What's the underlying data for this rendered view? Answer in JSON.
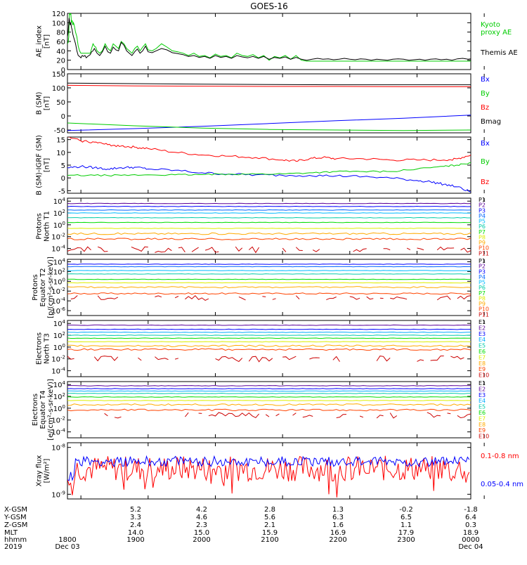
{
  "title": "GOES-16",
  "chart_data": [
    {
      "type": "line",
      "panel": "ae_index",
      "ylabel": [
        "AE_index",
        "[nT]"
      ],
      "yticks": [
        "120",
        "100",
        "80",
        "60",
        "40",
        "20",
        "0"
      ],
      "ylim": [
        0,
        120
      ],
      "legend": [
        {
          "label": "Kyoto",
          "color": "#00cc00"
        },
        {
          "label": "proxy AE",
          "color": "#00cc00"
        },
        {
          "label": "Themis AE",
          "color": "#000000"
        }
      ],
      "series": [
        {
          "name": "Kyoto proxy AE",
          "color": "#00cc00",
          "x": [
            0,
            0.05,
            0.1,
            0.12,
            0.15,
            0.2,
            0.25,
            0.3,
            0.35,
            0.4,
            0.45,
            0.5,
            0.6,
            0.7,
            0.8,
            0.9,
            1.0,
            1.1,
            1.2,
            1.3,
            1.4,
            1.5,
            1.6,
            1.7,
            1.8,
            1.9,
            2.0,
            2.1,
            2.2,
            2.4,
            2.6,
            2.8,
            3.0,
            3.2,
            3.4,
            3.6,
            3.8,
            4.0,
            4.2,
            4.4,
            4.6,
            4.8,
            5.0,
            5.2,
            5.4,
            5.6,
            5.8,
            6.0,
            6.3,
            6.6,
            7.0,
            7.4,
            7.8,
            8.2,
            8.6,
            9.0,
            9.4,
            9.8,
            10.2,
            10.6,
            11.0,
            11.4,
            11.8,
            12.2,
            12.6,
            13.0,
            13.4,
            13.8,
            14.2,
            14.6,
            15.0,
            15.4,
            15.8,
            16.2,
            16.6,
            17.0,
            17.4,
            17.8,
            18.2,
            18.6,
            19.0,
            19.4,
            19.8,
            20.2,
            20.6,
            21.0,
            21.4,
            21.8,
            22.2,
            22.6,
            23.0,
            23.4,
            23.8,
            24.2,
            24.6,
            25.0,
            25.4,
            25.8,
            26.2,
            26.6,
            27.0,
            27.4,
            27.8,
            28.2,
            28.6,
            29.0,
            29.4,
            29.8,
            30.0
          ],
          "y": [
            55,
            58,
            70,
            100,
            122,
            118,
            120,
            100,
            105,
            95,
            100,
            95,
            80,
            70,
            50,
            40,
            35,
            35,
            35,
            35,
            35,
            35,
            35,
            35,
            45,
            55,
            50,
            48,
            40,
            35,
            40,
            55,
            45,
            40,
            55,
            50,
            45,
            60,
            55,
            45,
            40,
            35,
            45,
            50,
            40,
            48,
            55,
            42,
            40,
            45,
            55,
            48,
            40,
            38,
            35,
            30,
            35,
            28,
            30,
            25,
            33,
            28,
            30,
            25,
            35,
            30,
            28,
            32,
            25,
            30,
            20,
            28,
            25,
            30,
            22,
            30,
            20,
            18,
            18,
            18,
            18,
            18,
            18,
            18,
            18,
            18,
            18,
            18,
            18,
            18,
            18,
            18,
            18,
            18,
            18,
            18,
            18,
            18,
            18,
            18,
            18,
            18,
            18,
            18,
            18,
            18,
            18,
            18,
            18
          ]
        },
        {
          "name": "Themis AE",
          "color": "#000000",
          "x": [
            0,
            0.05,
            0.1,
            0.12,
            0.15,
            0.2,
            0.25,
            0.3,
            0.35,
            0.4,
            0.45,
            0.5,
            0.6,
            0.7,
            0.8,
            0.9,
            1.0,
            1.1,
            1.2,
            1.3,
            1.4,
            1.5,
            1.6,
            1.7,
            1.8,
            1.9,
            2.0,
            2.1,
            2.2,
            2.4,
            2.6,
            2.8,
            3.0,
            3.2,
            3.4,
            3.6,
            3.8,
            4.0,
            4.2,
            4.4,
            4.6,
            4.8,
            5.0,
            5.2,
            5.4,
            5.6,
            5.8,
            6.0,
            6.3,
            6.6,
            7.0,
            7.4,
            7.8,
            8.2,
            8.6,
            9.0,
            9.4,
            9.8,
            10.2,
            10.6,
            11.0,
            11.4,
            11.8,
            12.2,
            12.6,
            13.0,
            13.4,
            13.8,
            14.2,
            14.6,
            15.0,
            15.4,
            15.8,
            16.2,
            16.6,
            17.0,
            17.4,
            17.8,
            18.2,
            18.6,
            19.0,
            19.4,
            19.8,
            20.2,
            20.6,
            21.0,
            21.4,
            21.8,
            22.2,
            22.6,
            23.0,
            23.4,
            23.8,
            24.2,
            24.6,
            25.0,
            25.4,
            25.8,
            26.2,
            26.6,
            27.0,
            27.4,
            27.8,
            28.2,
            28.6,
            29.0,
            29.4,
            29.8,
            30.0
          ],
          "y": [
            70,
            80,
            100,
            110,
            105,
            95,
            100,
            90,
            85,
            75,
            70,
            65,
            55,
            40,
            30,
            28,
            25,
            30,
            28,
            30,
            25,
            28,
            30,
            32,
            38,
            40,
            45,
            40,
            35,
            30,
            38,
            50,
            38,
            35,
            48,
            42,
            40,
            58,
            52,
            40,
            35,
            30,
            38,
            44,
            35,
            40,
            50,
            38,
            36,
            40,
            45,
            42,
            36,
            34,
            32,
            28,
            30,
            26,
            28,
            24,
            30,
            26,
            28,
            24,
            30,
            27,
            25,
            28,
            24,
            28,
            22,
            26,
            24,
            27,
            22,
            26,
            22,
            20,
            22,
            24,
            22,
            23,
            21,
            22,
            24,
            22,
            21,
            23,
            22,
            20,
            22,
            21,
            20,
            22,
            23,
            22,
            20,
            21,
            22,
            20,
            22,
            23,
            21,
            22,
            20,
            23,
            24,
            22,
            23
          ]
        }
      ]
    },
    {
      "type": "line",
      "panel": "b_sm",
      "ylabel": [
        "B (SM)",
        "[nT]"
      ],
      "yticks": [
        "150",
        "100",
        "50",
        "0",
        "-50"
      ],
      "ylim": [
        -60,
        150
      ],
      "legend": [
        {
          "label": "Bx",
          "color": "#0000ff"
        },
        {
          "label": "By",
          "color": "#00cc00"
        },
        {
          "label": "Bz",
          "color": "#ff0000"
        },
        {
          "label": "Bmag",
          "color": "#000000"
        }
      ],
      "series": [
        {
          "name": "Bx",
          "color": "#0000ff",
          "x": [
            0,
            5,
            10,
            15,
            20,
            25,
            30
          ],
          "y": [
            -52,
            -45,
            -37,
            -27,
            -17,
            -8,
            3
          ]
        },
        {
          "name": "By",
          "color": "#00cc00",
          "x": [
            0,
            5,
            10,
            15,
            20,
            25,
            30
          ],
          "y": [
            -25,
            -35,
            -43,
            -48,
            -50,
            -52,
            -50
          ]
        },
        {
          "name": "Bz",
          "color": "#ff0000",
          "x": [
            0,
            5,
            10,
            15,
            20,
            25,
            30
          ],
          "y": [
            109,
            107,
            106,
            105,
            105,
            104,
            104
          ]
        },
        {
          "name": "Bmag",
          "color": "#000000",
          "x": [
            0,
            5,
            10,
            15,
            20,
            25,
            30
          ],
          "y": [
            117,
            115,
            113,
            112,
            111,
            111,
            111
          ]
        }
      ]
    },
    {
      "type": "line",
      "panel": "b_minus_igrf",
      "ylabel": [
        "B (SM)-IGRF (SM)",
        "[nT]"
      ],
      "yticks": [
        "15",
        "10",
        "5",
        "0",
        "-5"
      ],
      "ylim": [
        -6,
        16
      ],
      "legend": [
        {
          "label": "Bx",
          "color": "#0000ff"
        },
        {
          "label": "By",
          "color": "#00cc00"
        },
        {
          "label": "Bz",
          "color": "#ff0000"
        }
      ],
      "series": [
        {
          "name": "Bx",
          "color": "#0000ff",
          "x": [
            0,
            1,
            2,
            3,
            4,
            5,
            6,
            8,
            10,
            12,
            14,
            16,
            18,
            20,
            22,
            24,
            26,
            27,
            28,
            29,
            30
          ],
          "y": [
            4,
            4.5,
            4,
            3.5,
            4,
            4.2,
            3.5,
            3,
            2,
            1.5,
            1.2,
            1,
            1,
            0.8,
            0.5,
            0,
            -1,
            -1.5,
            -2.5,
            -3.5,
            -5.5
          ]
        },
        {
          "name": "By",
          "color": "#00cc00",
          "x": [
            0,
            2,
            4,
            6,
            8,
            10,
            12,
            14,
            16,
            18,
            20,
            22,
            24,
            26,
            28,
            29,
            30
          ],
          "y": [
            1,
            1,
            1,
            1.2,
            1.2,
            1.3,
            1.5,
            1.5,
            1.6,
            2,
            2.5,
            2.5,
            2.5,
            3.5,
            4.5,
            5,
            6
          ]
        },
        {
          "name": "Bz",
          "color": "#ff0000",
          "x": [
            0,
            1,
            2,
            3,
            4,
            5,
            6,
            8,
            10,
            12,
            14,
            16,
            17,
            18,
            19,
            20,
            22,
            24,
            26,
            28,
            29,
            30
          ],
          "y": [
            16,
            14.5,
            14,
            13,
            12.5,
            12,
            11.5,
            10,
            9,
            8.5,
            8,
            7,
            6.5,
            7.5,
            8,
            7.5,
            7.5,
            7,
            7,
            7,
            7.5,
            9
          ]
        }
      ]
    },
    {
      "type": "line",
      "panel": "protons_north",
      "ylabel": [
        "Protons",
        "North T1"
      ],
      "yticks": [
        "10^4",
        "10^2",
        "10^0",
        "10^-2",
        "10^-4"
      ],
      "yscale": "log",
      "ylim": [
        -5,
        4.5
      ],
      "legend": [
        {
          "label": "P1",
          "color": "#000000"
        },
        {
          "label": "P2",
          "color": "#5a0099"
        },
        {
          "label": "P3",
          "color": "#0000ff"
        },
        {
          "label": "P4",
          "color": "#0066ff"
        },
        {
          "label": "P5",
          "color": "#00bbff"
        },
        {
          "label": "P6",
          "color": "#00ccaa"
        },
        {
          "label": "P7",
          "color": "#00dd00"
        },
        {
          "label": "P8",
          "color": "#ddee00"
        },
        {
          "label": "P9",
          "color": "#ffaa00"
        },
        {
          "label": "P10",
          "color": "#ff4400"
        },
        {
          "label": "P11",
          "color": "#cc0000"
        }
      ],
      "levels": [
        3.6,
        3.1,
        2.5,
        2.0,
        1.2,
        0.4,
        -0.6,
        -1.5,
        -2.4,
        -4.2
      ]
    },
    {
      "type": "line",
      "panel": "protons_equator",
      "ylabel": [
        "Protons",
        "Equator T2",
        "[p/(cm²-s-sr-keV)]"
      ],
      "yticks": [
        "10^4",
        "10^2",
        "10^0",
        "10^-2",
        "10^-4",
        "10^-6"
      ],
      "yscale": "log",
      "ylim": [
        -7,
        4.5
      ],
      "legend": [
        {
          "label": "P1",
          "color": "#000000"
        },
        {
          "label": "P2",
          "color": "#5a0099"
        },
        {
          "label": "P3",
          "color": "#0000ff"
        },
        {
          "label": "P4",
          "color": "#0066ff"
        },
        {
          "label": "P5",
          "color": "#00bbff"
        },
        {
          "label": "P6",
          "color": "#00ccaa"
        },
        {
          "label": "P7",
          "color": "#00dd00"
        },
        {
          "label": "P8",
          "color": "#ddee00"
        },
        {
          "label": "P9",
          "color": "#ffaa00"
        },
        {
          "label": "P10",
          "color": "#ff4400"
        },
        {
          "label": "P11",
          "color": "#cc0000"
        }
      ],
      "levels": [
        3.5,
        3.0,
        2.2,
        1.5,
        0.4,
        -0.3,
        -1.2,
        -2.5,
        -3.4
      ]
    },
    {
      "type": "line",
      "panel": "electrons_north",
      "ylabel": [
        "Electrons",
        "North T3"
      ],
      "yticks": [
        "10^4",
        "10^2",
        "10^0",
        "10^-2",
        "10^-4"
      ],
      "yscale": "log",
      "ylim": [
        -5,
        4.5
      ],
      "legend": [
        {
          "label": "E1",
          "color": "#000000"
        },
        {
          "label": "E2",
          "color": "#5a0099"
        },
        {
          "label": "E3",
          "color": "#0000ff"
        },
        {
          "label": "E4",
          "color": "#00aaff"
        },
        {
          "label": "E5",
          "color": "#00ccaa"
        },
        {
          "label": "E6",
          "color": "#00dd00"
        },
        {
          "label": "E7",
          "color": "#ddee00"
        },
        {
          "label": "E8",
          "color": "#ffaa00"
        },
        {
          "label": "E9",
          "color": "#ff4400"
        },
        {
          "label": "E10",
          "color": "#cc0000"
        }
      ],
      "levels": [
        3.7,
        3.0,
        2.5,
        2.0,
        1.5,
        0.9,
        0.2,
        -0.4,
        -2.0
      ]
    },
    {
      "type": "line",
      "panel": "electrons_equator",
      "ylabel": [
        "Electrons",
        "Equator T4",
        "[e/(cm²-s-sr-keV)]"
      ],
      "yticks": [
        "10^4",
        "10^2",
        "10^0",
        "10^-2",
        "10^-4"
      ],
      "yscale": "log",
      "ylim": [
        -5,
        4.5
      ],
      "legend": [
        {
          "label": "E1",
          "color": "#000000"
        },
        {
          "label": "E2",
          "color": "#5a0099"
        },
        {
          "label": "E3",
          "color": "#0000ff"
        },
        {
          "label": "E4",
          "color": "#00aaff"
        },
        {
          "label": "E5",
          "color": "#00ccaa"
        },
        {
          "label": "E6",
          "color": "#00dd00"
        },
        {
          "label": "E7",
          "color": "#ddee00"
        },
        {
          "label": "E8",
          "color": "#ffaa00"
        },
        {
          "label": "E9",
          "color": "#ff4400"
        },
        {
          "label": "E10",
          "color": "#cc0000"
        }
      ],
      "levels": [
        3.8,
        3.3,
        2.9,
        2.5,
        1.9,
        1.3,
        0.6,
        -0.3,
        -1.2
      ]
    },
    {
      "type": "line",
      "panel": "xray_flux",
      "ylabel": [
        "Xray flux",
        "[W/m²]"
      ],
      "yticks": [
        "10^-8",
        "10^-9"
      ],
      "yscale": "log",
      "ylim": [
        -9.1,
        -7.9
      ],
      "legend": [
        {
          "label": "0.1-0.8 nm",
          "color": "#ff0000"
        },
        {
          "label": "0.05-0.4 nm",
          "color": "#0000ff"
        }
      ],
      "series": [
        {
          "name": "0.1-0.8 nm",
          "color": "#ff0000",
          "mean_log": -8.45
        },
        {
          "name": "0.05-0.4 nm",
          "color": "#0000ff",
          "mean_log": -8.3
        }
      ]
    }
  ],
  "time_axis": {
    "ticks": [
      "1800",
      "1900",
      "2000",
      "2100",
      "2200",
      "2300",
      "0000"
    ],
    "row_labels": [
      "X-GSM",
      "Y-GSM",
      "Z-GSM",
      "MLT",
      "hhmm",
      "2019"
    ],
    "x_gsm": [
      "5.2",
      "4.2",
      "2.8",
      "1.3",
      "-0.2",
      "-1.8"
    ],
    "y_gsm": [
      "3.3",
      "4.6",
      "5.6",
      "6.3",
      "6.5",
      "6.4"
    ],
    "z_gsm": [
      "2.4",
      "2.3",
      "2.1",
      "1.6",
      "1.1",
      "0.3"
    ],
    "mlt": [
      "14.0",
      "15.0",
      "15.9",
      "16.9",
      "17.9",
      "18.9"
    ],
    "hhmm": [
      "1800",
      "1900",
      "2000",
      "2100",
      "2200",
      "2300",
      "0000"
    ],
    "date_start": "Dec 03",
    "date_end": "Dec 04"
  }
}
